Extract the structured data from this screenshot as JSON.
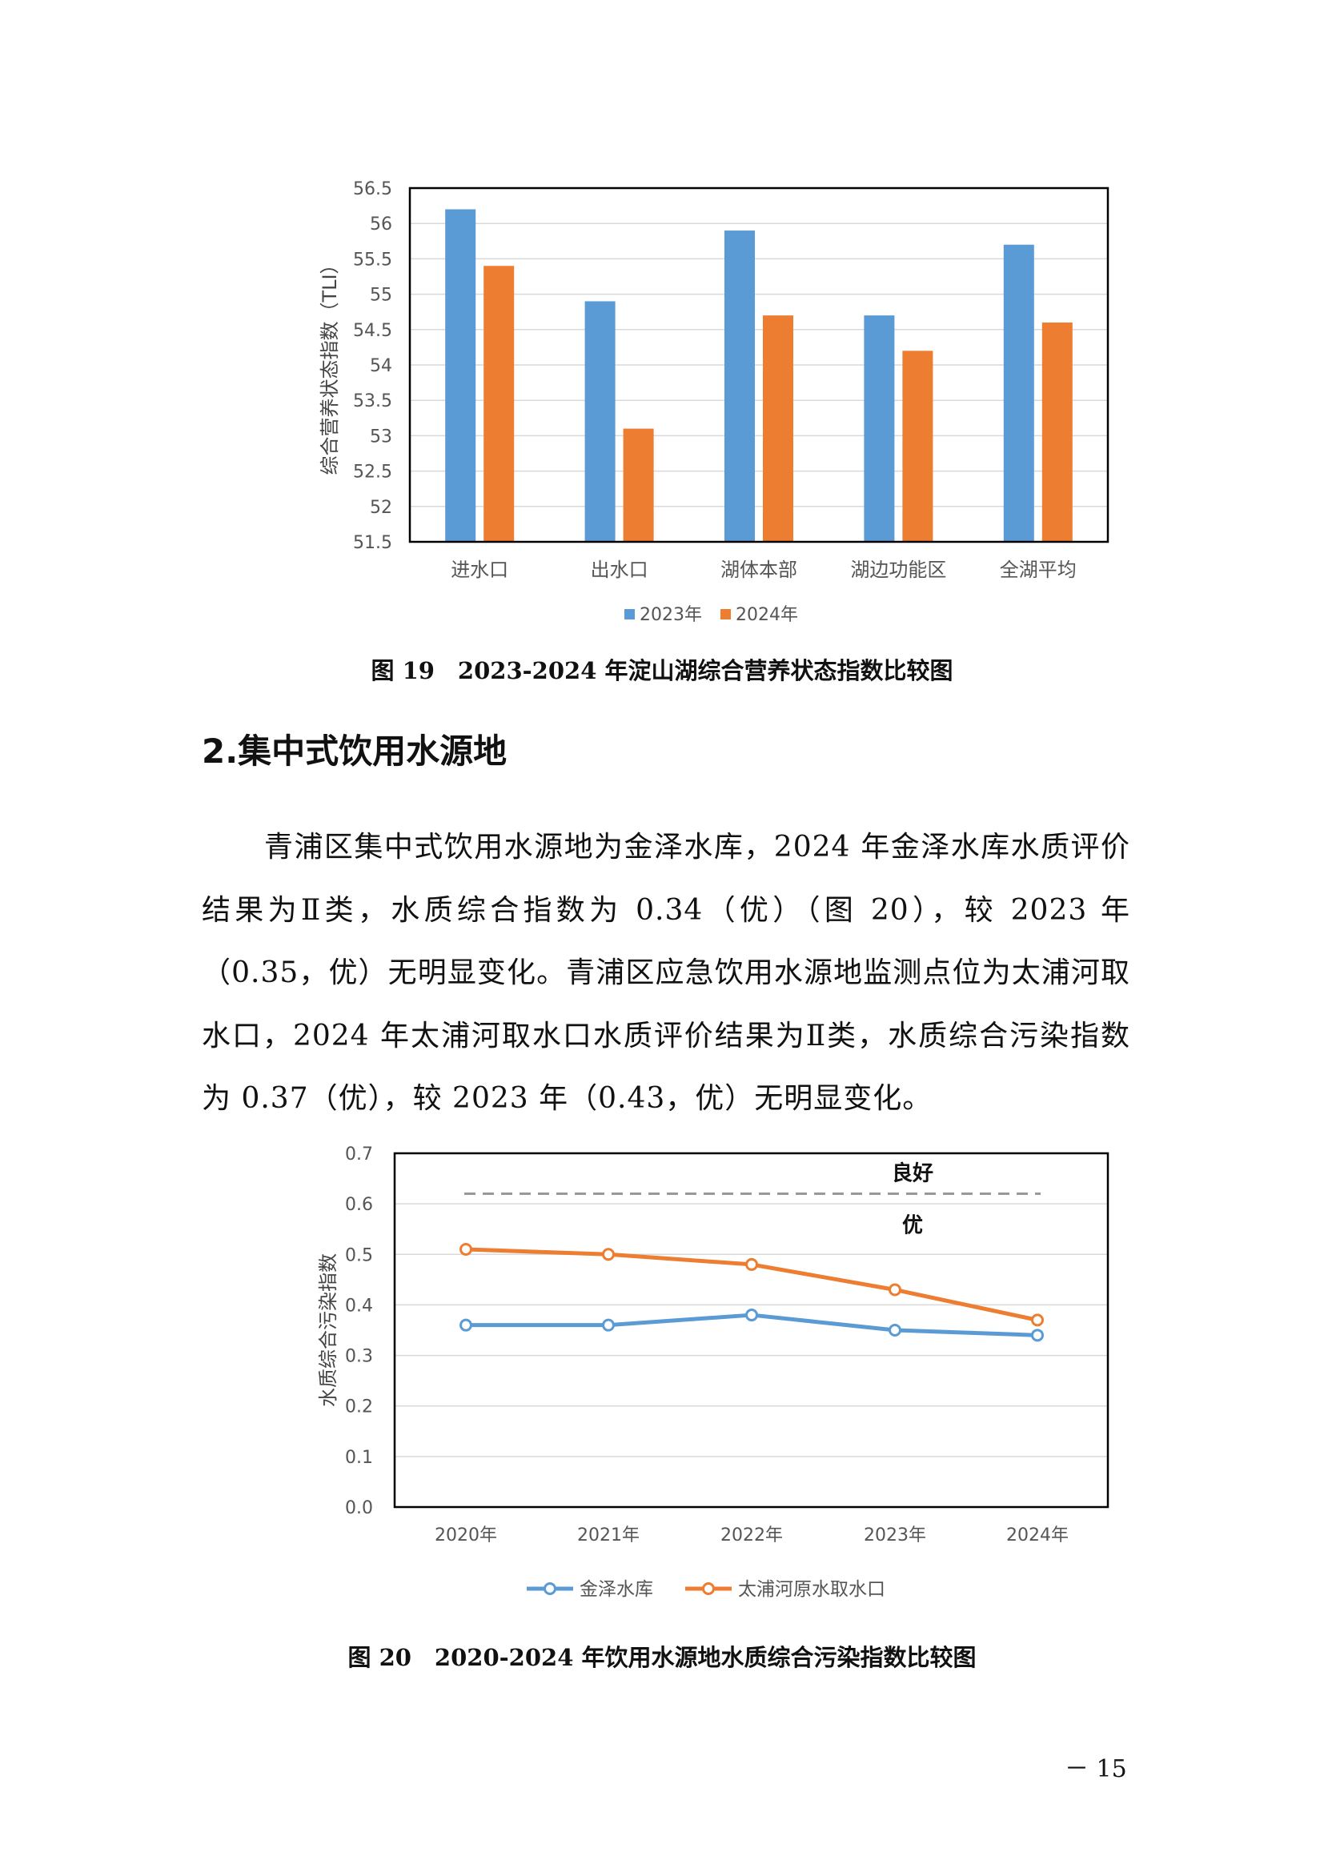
{
  "figure19": {
    "caption": "图 19　2023-2024 年淀山湖综合营养状态指数比较图",
    "chart_data": {
      "type": "bar",
      "categories": [
        "进水口",
        "出水口",
        "湖体本部",
        "湖边功能区",
        "全湖平均"
      ],
      "series": [
        {
          "name": "2023年",
          "values": [
            56.2,
            54.9,
            55.9,
            54.7,
            55.7
          ],
          "color": "#5b9bd5"
        },
        {
          "name": "2024年",
          "values": [
            55.4,
            53.1,
            54.7,
            54.2,
            54.6
          ],
          "color": "#ed7d31"
        }
      ],
      "ylabel": "综合营养状态指数（TLI）",
      "xlabel": "",
      "ylim": [
        51.5,
        56.5
      ],
      "yticks": [
        "51.5",
        "52",
        "52.5",
        "53",
        "53.5",
        "54",
        "54.5",
        "55",
        "55.5",
        "56",
        "56.5"
      ],
      "grid": true,
      "legend": "bottom"
    }
  },
  "section": {
    "heading": "2.集中式饮用水源地",
    "paragraph": "青浦区集中式饮用水源地为金泽水库，2024 年金泽水库水质评价结果为Ⅱ类，水质综合指数为 0.34（优）（图 20），较 2023 年（0.35，优）无明显变化。青浦区应急饮用水源地监测点位为太浦河取水口，2024 年太浦河取水口水质评价结果为Ⅱ类，水质综合污染指数为 0.37（优），较 2023 年（0.43，优）无明显变化。"
  },
  "figure20": {
    "caption": "图 20　2020-2024 年饮用水源地水质综合污染指数比较图",
    "chart_data": {
      "type": "line",
      "categories": [
        "2020年",
        "2021年",
        "2022年",
        "2023年",
        "2024年"
      ],
      "series": [
        {
          "name": "金泽水库",
          "values": [
            0.36,
            0.36,
            0.38,
            0.35,
            0.34
          ],
          "color": "#5b9bd5"
        },
        {
          "name": "太浦河原水取水口",
          "values": [
            0.51,
            0.5,
            0.48,
            0.43,
            0.37
          ],
          "color": "#ed7d31"
        }
      ],
      "ylabel": "水质综合污染指数",
      "xlabel": "",
      "ylim": [
        0,
        0.7
      ],
      "yticks": [
        "0.0",
        "0.1",
        "0.2",
        "0.3",
        "0.4",
        "0.5",
        "0.6",
        "0.7"
      ],
      "threshold": {
        "value": 0.62,
        "label_above": "良好",
        "label_below": "优",
        "color": "#999999"
      },
      "grid": true,
      "legend": "bottom"
    }
  },
  "page_number": "－ 15"
}
